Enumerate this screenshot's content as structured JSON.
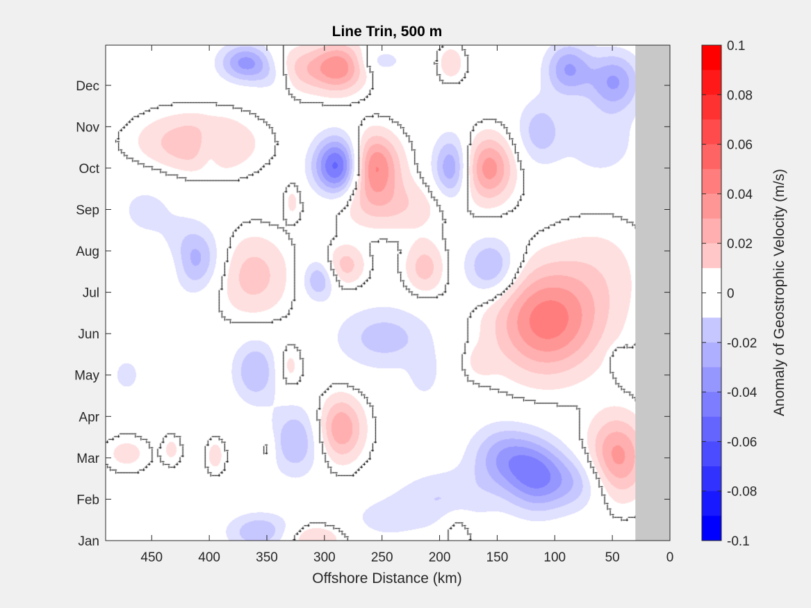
{
  "chart_data": {
    "type": "heatmap",
    "title": "Line Trin, 500 m",
    "xlabel": "Offshore Distance (km)",
    "ylabel": "",
    "x_axis_reversed": true,
    "xlim": [
      0,
      490
    ],
    "xticks": [
      450,
      400,
      350,
      300,
      250,
      200,
      150,
      100,
      50,
      0
    ],
    "ylim": [
      1,
      12.97
    ],
    "yticks": [
      {
        "pos": 1,
        "label": "Jan"
      },
      {
        "pos": 2,
        "label": "Feb"
      },
      {
        "pos": 3,
        "label": "Mar"
      },
      {
        "pos": 4,
        "label": "Apr"
      },
      {
        "pos": 5,
        "label": "May"
      },
      {
        "pos": 6,
        "label": "Jun"
      },
      {
        "pos": 7,
        "label": "Jul"
      },
      {
        "pos": 8,
        "label": "Aug"
      },
      {
        "pos": 9,
        "label": "Sep"
      },
      {
        "pos": 10,
        "label": "Oct"
      },
      {
        "pos": 11,
        "label": "Nov"
      },
      {
        "pos": 12,
        "label": "Dec"
      }
    ],
    "no_data_range_km": [
      0,
      30
    ],
    "no_data_color": "#c8c8c8",
    "zero_contour_color": "#000000",
    "colorbar": {
      "label": "Anomaly of Geostrophic Velocity (m/s)",
      "limits": [
        -0.1,
        0.1
      ],
      "step": 0.01,
      "ticks": [
        0.1,
        0.08,
        0.06,
        0.04,
        0.02,
        0,
        -0.02,
        -0.04,
        -0.06,
        -0.08,
        -0.1
      ],
      "positive_max_color": "#ff0000",
      "negative_max_color": "#0000ff",
      "neutral_color": "#ffffff"
    },
    "anomaly_features": [
      {
        "x": 258,
        "y": 10.05,
        "sx": 16,
        "sy": 0.55,
        "value": 0.055
      },
      {
        "x": 243,
        "y": 9.1,
        "sx": 35,
        "sy": 0.45,
        "value": 0.02
      },
      {
        "x": 288,
        "y": 10.05,
        "sx": 15,
        "sy": 0.5,
        "value": -0.07
      },
      {
        "x": 286,
        "y": 12.45,
        "sx": 15,
        "sy": 0.42,
        "value": 0.04
      },
      {
        "x": 318,
        "y": 12.4,
        "sx": 22,
        "sy": 0.4,
        "value": 0.025
      },
      {
        "x": 368,
        "y": 12.55,
        "sx": 16,
        "sy": 0.32,
        "value": -0.045
      },
      {
        "x": 345,
        "y": 12.2,
        "sx": 12,
        "sy": 0.3,
        "value": -0.015
      },
      {
        "x": 250,
        "y": 12.6,
        "sx": 14,
        "sy": 0.22,
        "value": -0.015
      },
      {
        "x": 190,
        "y": 12.55,
        "sx": 8,
        "sy": 0.3,
        "value": 0.018
      },
      {
        "x": 88,
        "y": 12.4,
        "sx": 14,
        "sy": 0.45,
        "value": -0.04
      },
      {
        "x": 48,
        "y": 12.1,
        "sx": 16,
        "sy": 0.5,
        "value": -0.04
      },
      {
        "x": 60,
        "y": 10.6,
        "sx": 26,
        "sy": 0.7,
        "value": -0.015
      },
      {
        "x": 113,
        "y": 10.9,
        "sx": 14,
        "sy": 0.55,
        "value": -0.025
      },
      {
        "x": 412,
        "y": 10.6,
        "sx": 35,
        "sy": 0.5,
        "value": 0.03
      },
      {
        "x": 400,
        "y": 10.5,
        "sx": 8,
        "sy": 0.35,
        "value": -0.015
      },
      {
        "x": 328,
        "y": 9.2,
        "sx": 5,
        "sy": 0.3,
        "value": 0.012
      },
      {
        "x": 190,
        "y": 10.0,
        "sx": 11,
        "sy": 0.55,
        "value": -0.04
      },
      {
        "x": 157,
        "y": 10.0,
        "sx": 15,
        "sy": 0.55,
        "value": 0.045
      },
      {
        "x": 455,
        "y": 9.0,
        "sx": 25,
        "sy": 0.7,
        "value": -0.012
      },
      {
        "x": 413,
        "y": 7.8,
        "sx": 16,
        "sy": 0.55,
        "value": -0.035
      },
      {
        "x": 362,
        "y": 7.4,
        "sx": 22,
        "sy": 0.7,
        "value": 0.025
      },
      {
        "x": 305,
        "y": 7.3,
        "sx": 10,
        "sy": 0.35,
        "value": -0.03
      },
      {
        "x": 282,
        "y": 7.65,
        "sx": 12,
        "sy": 0.35,
        "value": 0.025
      },
      {
        "x": 213,
        "y": 7.6,
        "sx": 12,
        "sy": 0.45,
        "value": 0.025
      },
      {
        "x": 155,
        "y": 7.6,
        "sx": 16,
        "sy": 0.5,
        "value": -0.035
      },
      {
        "x": 248,
        "y": 5.9,
        "sx": 30,
        "sy": 0.55,
        "value": -0.025
      },
      {
        "x": 107,
        "y": 6.3,
        "sx": 32,
        "sy": 0.9,
        "value": 0.055
      },
      {
        "x": 60,
        "y": 7.5,
        "sx": 30,
        "sy": 1.0,
        "value": 0.012
      },
      {
        "x": 360,
        "y": 5.1,
        "sx": 14,
        "sy": 0.55,
        "value": -0.03
      },
      {
        "x": 331,
        "y": 5.2,
        "sx": 8,
        "sy": 0.4,
        "value": 0.015
      },
      {
        "x": 213,
        "y": 5.0,
        "sx": 9,
        "sy": 0.4,
        "value": -0.015
      },
      {
        "x": 286,
        "y": 3.7,
        "sx": 14,
        "sy": 0.55,
        "value": 0.04
      },
      {
        "x": 325,
        "y": 3.4,
        "sx": 16,
        "sy": 0.6,
        "value": -0.03
      },
      {
        "x": 472,
        "y": 3.1,
        "sx": 14,
        "sy": 0.3,
        "value": 0.014
      },
      {
        "x": 395,
        "y": 3.05,
        "sx": 6,
        "sy": 0.3,
        "value": 0.015
      },
      {
        "x": 350,
        "y": 3.25,
        "sx": 6,
        "sy": 0.3,
        "value": 0.012
      },
      {
        "x": 433,
        "y": 3.2,
        "sx": 6,
        "sy": 0.25,
        "value": 0.013
      },
      {
        "x": 472,
        "y": 5.0,
        "sx": 10,
        "sy": 0.35,
        "value": -0.014
      },
      {
        "x": 145,
        "y": 3.0,
        "sx": 20,
        "sy": 0.55,
        "value": -0.035
      },
      {
        "x": 116,
        "y": 2.55,
        "sx": 18,
        "sy": 0.6,
        "value": -0.045
      },
      {
        "x": 80,
        "y": 2.4,
        "sx": 20,
        "sy": 0.5,
        "value": -0.025
      },
      {
        "x": 196,
        "y": 2.0,
        "sx": 30,
        "sy": 0.5,
        "value": -0.02
      },
      {
        "x": 46,
        "y": 3.0,
        "sx": 18,
        "sy": 0.7,
        "value": 0.045
      },
      {
        "x": 356,
        "y": 1.2,
        "sx": 20,
        "sy": 0.32,
        "value": -0.03
      },
      {
        "x": 310,
        "y": 1.05,
        "sx": 20,
        "sy": 0.25,
        "value": 0.02
      },
      {
        "x": 185,
        "y": 1.3,
        "sx": 10,
        "sy": 0.35,
        "value": 0.015
      },
      {
        "x": 250,
        "y": 1.5,
        "sx": 25,
        "sy": 0.4,
        "value": -0.012
      },
      {
        "x": 44,
        "y": 5.4,
        "sx": 6,
        "sy": 0.2,
        "value": -0.012
      },
      {
        "x": 165,
        "y": 5.3,
        "sx": 10,
        "sy": 0.3,
        "value": 0.01
      },
      {
        "x": 430,
        "y": 7.7,
        "sx": 10,
        "sy": 0.4,
        "value": 0.01
      }
    ]
  }
}
